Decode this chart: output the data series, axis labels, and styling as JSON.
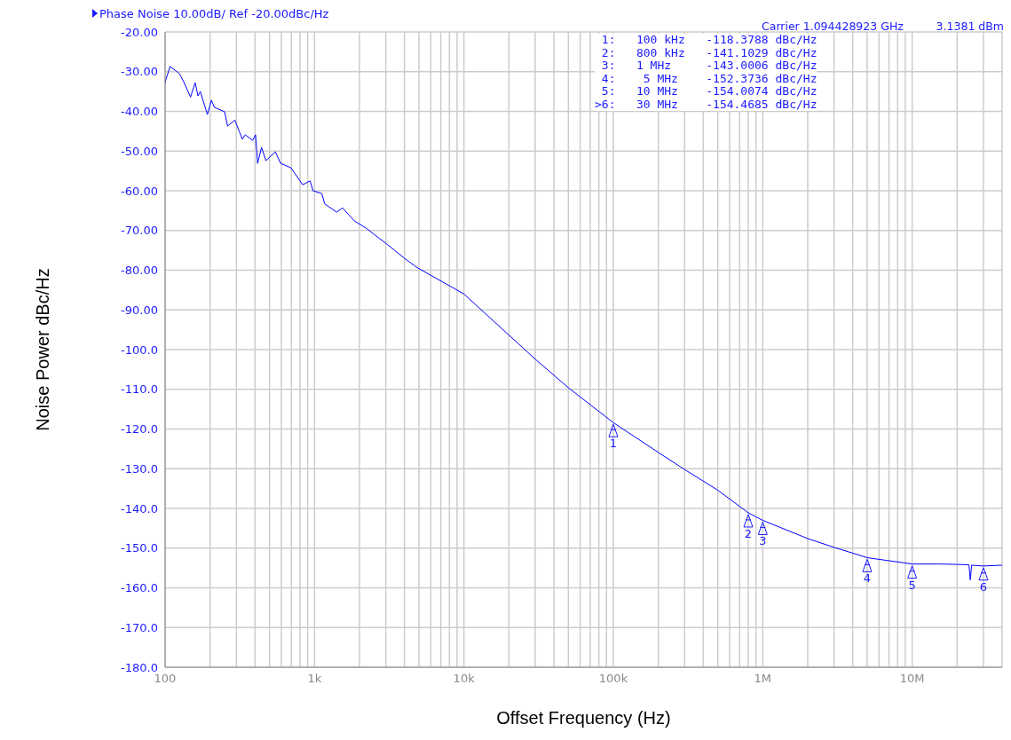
{
  "chart_data": {
    "type": "line",
    "title": "Phase Noise 10.00dB/ Ref -20.00dBc/Hz",
    "xlabel": "Offset Frequency (Hz)",
    "ylabel": "Noise Power dBc/Hz",
    "log": "x",
    "grid": true,
    "legend": false,
    "marker": "none",
    "line_style": "solid",
    "x": [
      100,
      101,
      108,
      124,
      133,
      148,
      159,
      166,
      172,
      192,
      204,
      214,
      250,
      262,
      293,
      314,
      329,
      344,
      385,
      403,
      416,
      442,
      473,
      547,
      593,
      695,
      834,
      934,
      977,
      1120,
      1170,
      1410,
      1540,
      1850,
      2210,
      3040,
      4000,
      4790,
      10000,
      30000,
      50000,
      100000,
      200000,
      300000,
      500000,
      800000,
      1000000,
      2000000,
      3000000,
      5000000,
      10000000,
      15000000,
      20000000,
      24000000,
      24500000,
      25000000,
      30000000,
      40000000
    ],
    "series": [
      {
        "color": "#0000ff",
        "values": [
          -33,
          -32.1,
          -28.7,
          -30.4,
          -32.5,
          -36.4,
          -32.8,
          -36.1,
          -35,
          -40.8,
          -37.2,
          -39,
          -40.1,
          -43.7,
          -42.2,
          -45.1,
          -47,
          -45.9,
          -47.3,
          -45.9,
          -53.1,
          -49.1,
          -52.4,
          -50.2,
          -53.1,
          -54.2,
          -58.5,
          -57.5,
          -60,
          -60.7,
          -63.3,
          -65.4,
          -64.3,
          -67.6,
          -69.4,
          -73.4,
          -77,
          -79.2,
          -86,
          -102.4,
          -109.6,
          -118.4,
          -125.9,
          -130.2,
          -135.4,
          -141.1,
          -143,
          -147.6,
          -149.8,
          -152.4,
          -154,
          -154,
          -154.1,
          -154.2,
          -158,
          -154.3,
          -154.5,
          -154.3
        ]
      }
    ],
    "xlim": [
      100,
      40000000
    ],
    "xticks": [
      {
        "value": 100,
        "label": "100"
      },
      {
        "value": 200,
        "label": null
      },
      {
        "value": 300,
        "label": null
      },
      {
        "value": 400,
        "label": null
      },
      {
        "value": 500,
        "label": null
      },
      {
        "value": 600,
        "label": null
      },
      {
        "value": 700,
        "label": null
      },
      {
        "value": 800,
        "label": null
      },
      {
        "value": 900,
        "label": null
      },
      {
        "value": 1000,
        "label": "1k"
      },
      {
        "value": 2000,
        "label": null
      },
      {
        "value": 3000,
        "label": null
      },
      {
        "value": 4000,
        "label": null
      },
      {
        "value": 5000,
        "label": null
      },
      {
        "value": 6000,
        "label": null
      },
      {
        "value": 7000,
        "label": null
      },
      {
        "value": 8000,
        "label": null
      },
      {
        "value": 9000,
        "label": null
      },
      {
        "value": 10000,
        "label": "10k"
      },
      {
        "value": 20000,
        "label": null
      },
      {
        "value": 30000,
        "label": null
      },
      {
        "value": 40000,
        "label": null
      },
      {
        "value": 50000,
        "label": null
      },
      {
        "value": 60000,
        "label": null
      },
      {
        "value": 70000,
        "label": null
      },
      {
        "value": 80000,
        "label": null
      },
      {
        "value": 90000,
        "label": null
      },
      {
        "value": 100000,
        "label": "100k"
      },
      {
        "value": 200000,
        "label": null
      },
      {
        "value": 300000,
        "label": null
      },
      {
        "value": 400000,
        "label": null
      },
      {
        "value": 500000,
        "label": null
      },
      {
        "value": 600000,
        "label": null
      },
      {
        "value": 700000,
        "label": null
      },
      {
        "value": 800000,
        "label": null
      },
      {
        "value": 900000,
        "label": null
      },
      {
        "value": 1000000,
        "label": "1M"
      },
      {
        "value": 2000000,
        "label": null
      },
      {
        "value": 3000000,
        "label": null
      },
      {
        "value": 4000000,
        "label": null
      },
      {
        "value": 5000000,
        "label": null
      },
      {
        "value": 6000000,
        "label": null
      },
      {
        "value": 7000000,
        "label": null
      },
      {
        "value": 8000000,
        "label": null
      },
      {
        "value": 9000000,
        "label": null
      },
      {
        "value": 10000000,
        "label": "10M"
      },
      {
        "value": 20000000,
        "label": null
      },
      {
        "value": 30000000,
        "label": null
      },
      {
        "value": 40000000,
        "label": null
      }
    ],
    "ylim": [
      -180,
      -20
    ],
    "yticks": [
      {
        "value": -20,
        "label": "-20.00"
      },
      {
        "value": -30,
        "label": "-30.00"
      },
      {
        "value": -40,
        "label": "-40.00"
      },
      {
        "value": -50,
        "label": "-50.00"
      },
      {
        "value": -60,
        "label": "-60.00"
      },
      {
        "value": -70,
        "label": "-70.00"
      },
      {
        "value": -80,
        "label": "-80.00"
      },
      {
        "value": -90,
        "label": "-90.00"
      },
      {
        "value": -100,
        "label": "-100.0"
      },
      {
        "value": -110,
        "label": "-110.0"
      },
      {
        "value": -120,
        "label": "-120.0"
      },
      {
        "value": -130,
        "label": "-130.0"
      },
      {
        "value": -140,
        "label": "-140.0"
      },
      {
        "value": -150,
        "label": "-150.0"
      },
      {
        "value": -160,
        "label": "-160.0"
      },
      {
        "value": -170,
        "label": "-170.0"
      },
      {
        "value": -180,
        "label": "-180.0"
      }
    ],
    "annotations": [
      "Carrier 1.094428923 GHz",
      "3.1381 dBm",
      " 1:   100 kHz   -118.3788 dBc/Hz",
      " 2:   800 kHz   -141.1029 dBc/Hz",
      " 3:   1 MHz     -143.0006 dBc/Hz",
      " 4:    5 MHz    -152.3736 dBc/Hz",
      " 5:   10 MHz    -154.0074 dBc/Hz",
      ">6:   30 MHz    -154.4685 dBc/Hz",
      {
        "text": "1",
        "x": 100000,
        "y": -118.3788
      },
      {
        "text": "2",
        "x": 800000,
        "y": -141.1029
      },
      {
        "text": "3",
        "x": 1000000,
        "y": -143.0006
      },
      {
        "text": "4",
        "x": 5000000,
        "y": -152.3736
      },
      {
        "text": "5",
        "x": 10000000,
        "y": -154.0074
      },
      {
        "text": "6",
        "x": 30000000,
        "y": -154.4685
      }
    ]
  }
}
